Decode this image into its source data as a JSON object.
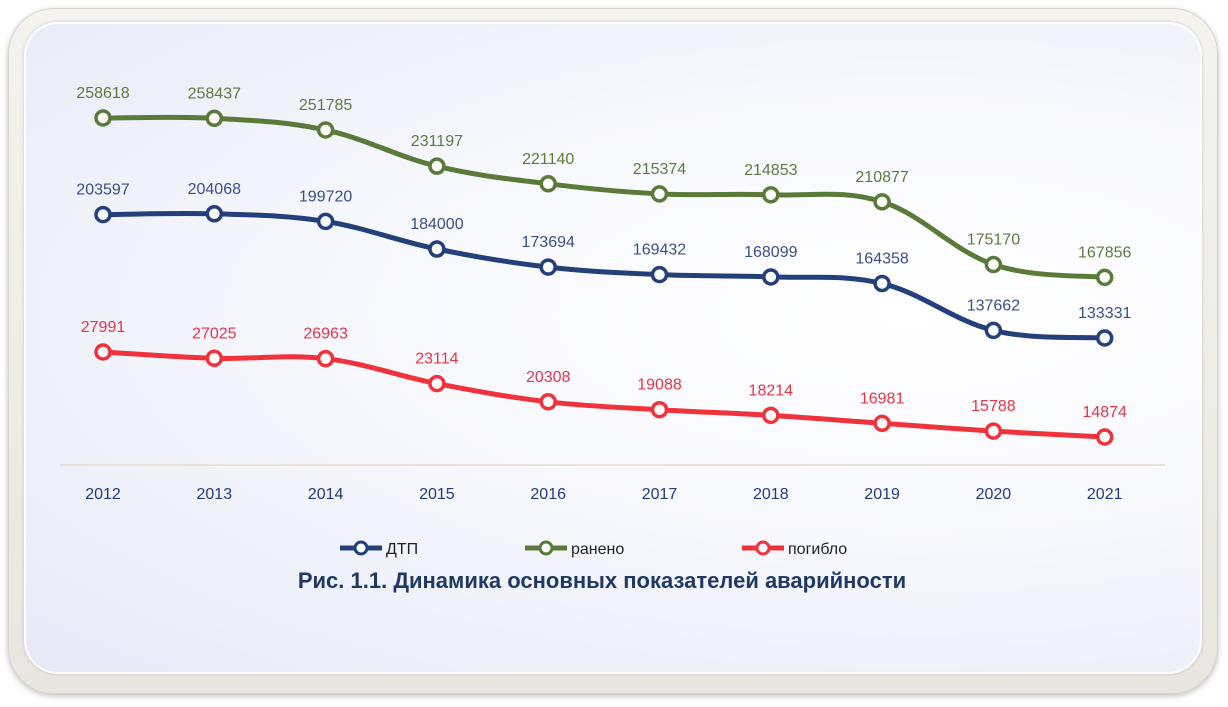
{
  "chart_data": {
    "type": "line",
    "title": "Рис. 1.1.  Динамика основных показателей аварийности",
    "categories": [
      "2012",
      "2013",
      "2014",
      "2015",
      "2016",
      "2017",
      "2018",
      "2019",
      "2020",
      "2021"
    ],
    "series": [
      {
        "name": "ДТП",
        "color": "#243f7a",
        "label_color": "#3a4f8a",
        "values": [
          203597,
          204068,
          199720,
          184000,
          173694,
          169432,
          168099,
          164358,
          137662,
          133331
        ]
      },
      {
        "name": "ранено",
        "color": "#5a7a3a",
        "label_color": "#5f7a3f",
        "values": [
          258618,
          258437,
          251785,
          231197,
          221140,
          215374,
          214853,
          210877,
          175170,
          167856
        ]
      },
      {
        "name": "погибло",
        "color": "#f0323c",
        "label_color": "#e8324a",
        "values": [
          27991,
          27025,
          26963,
          23114,
          20308,
          19088,
          18214,
          16981,
          15788,
          14874
        ]
      }
    ],
    "legend_position": "bottom",
    "grid": false,
    "markers": "open-circle"
  }
}
